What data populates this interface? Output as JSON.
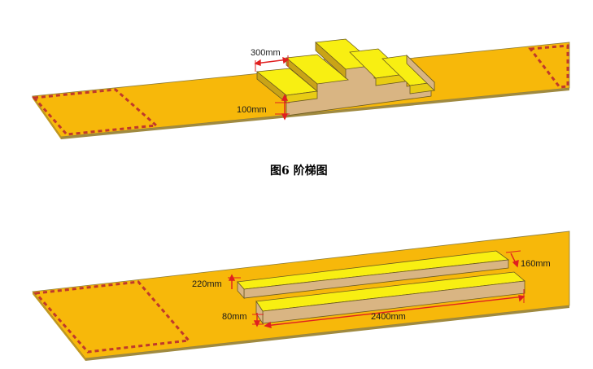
{
  "figure1": {
    "caption": "图6  阶梯图",
    "dim_width": "300mm",
    "dim_height": "100mm"
  },
  "figure2": {
    "dim_left_top": "220mm",
    "dim_left_bottom": "80mm",
    "dim_right": "160mm",
    "dim_length": "2400mm"
  },
  "colors": {
    "plank": "#f7b80a",
    "plank_edge": "#8a7a3a",
    "step_top": "#f8ef12",
    "wood_side": "#d9b583",
    "dash": "#c0392b",
    "dim_line": "#e02020"
  }
}
